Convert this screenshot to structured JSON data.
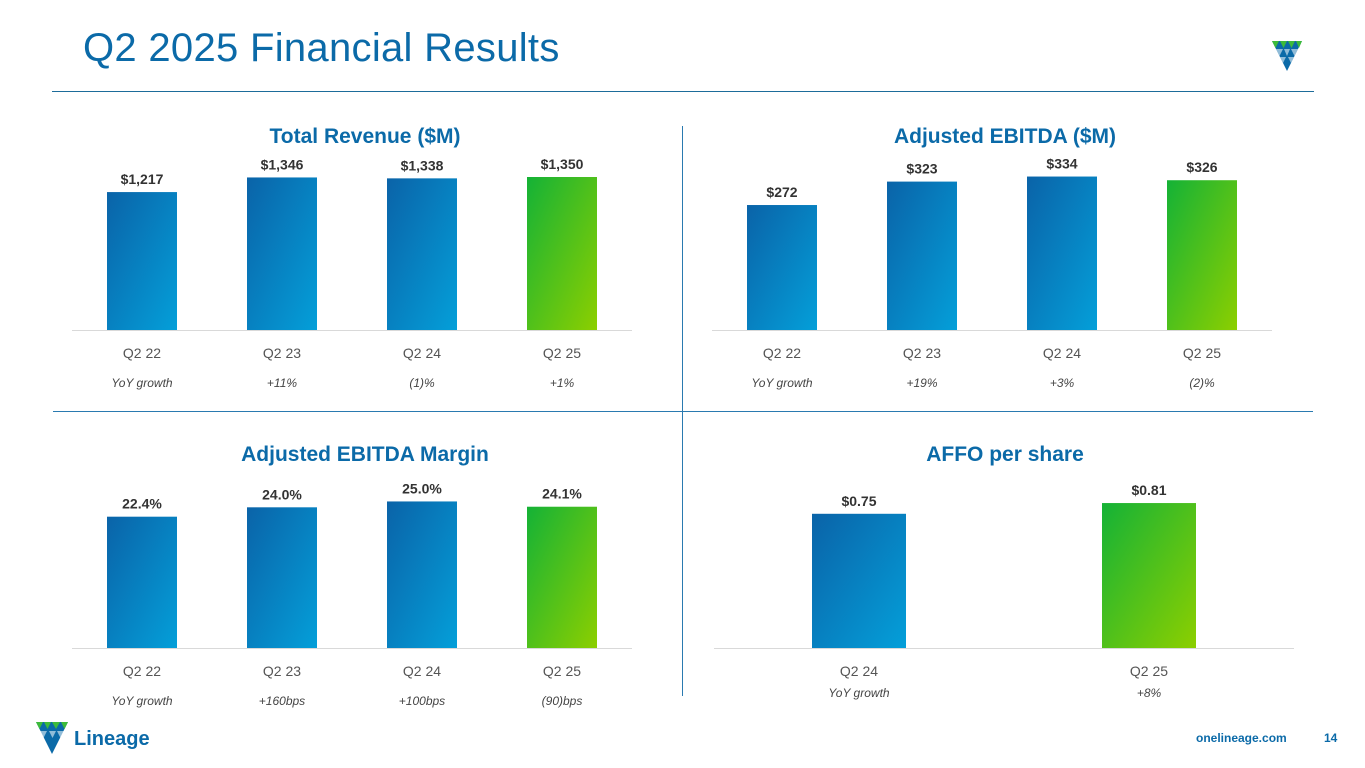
{
  "page": {
    "title": "Q2 2025 Financial Results",
    "url": "onelineage.com",
    "page_number": "14",
    "logo_text": "Lineage",
    "colors": {
      "brand_blue": "#0b6aa8",
      "bar_blue_dark": "#0a63a8",
      "bar_blue_light": "#049fd9",
      "bar_green": "#14b236",
      "bar_lime": "#8ccf00"
    }
  },
  "chart_data": [
    {
      "id": "revenue",
      "type": "bar",
      "title": "Total Revenue ($M)",
      "categories": [
        "Q2 22",
        "Q2 23",
        "Q2 24",
        "Q2 25"
      ],
      "values": [
        1217,
        1346,
        1338,
        1350
      ],
      "value_labels": [
        "$1,217",
        "$1,346",
        "$1,338",
        "$1,350"
      ],
      "growth_labels": [
        "YoY growth",
        "+11%",
        "(1)%",
        "+1%"
      ],
      "xlabel": "",
      "ylabel": "",
      "ylim": [
        0,
        1500
      ]
    },
    {
      "id": "ebitda",
      "type": "bar",
      "title": "Adjusted EBITDA ($M)",
      "categories": [
        "Q2 22",
        "Q2 23",
        "Q2 24",
        "Q2 25"
      ],
      "values": [
        272,
        323,
        334,
        326
      ],
      "value_labels": [
        "$272",
        "$323",
        "$334",
        "$326"
      ],
      "growth_labels": [
        "YoY growth",
        "+19%",
        "+3%",
        "(2)%"
      ],
      "xlabel": "",
      "ylabel": "",
      "ylim": [
        0,
        370
      ]
    },
    {
      "id": "margin",
      "type": "bar",
      "title": "Adjusted EBITDA Margin",
      "categories": [
        "Q2 22",
        "Q2 23",
        "Q2 24",
        "Q2 25"
      ],
      "values": [
        22.4,
        24.0,
        25.0,
        24.1
      ],
      "value_labels": [
        "22.4%",
        "24.0%",
        "25.0%",
        "24.1%"
      ],
      "growth_labels": [
        "YoY growth",
        "+160bps",
        "+100bps",
        "(90)bps"
      ],
      "xlabel": "",
      "ylabel": "",
      "ylim": [
        0,
        29
      ]
    },
    {
      "id": "affo",
      "type": "bar",
      "title": "AFFO per share",
      "categories": [
        "Q2 24",
        "Q2 25"
      ],
      "values": [
        0.75,
        0.81
      ],
      "value_labels": [
        "$0.75",
        "$0.81"
      ],
      "growth_labels": [
        "YoY growth",
        "+8%"
      ],
      "xlabel": "",
      "ylabel": "",
      "ylim": [
        0,
        0.95
      ]
    }
  ]
}
